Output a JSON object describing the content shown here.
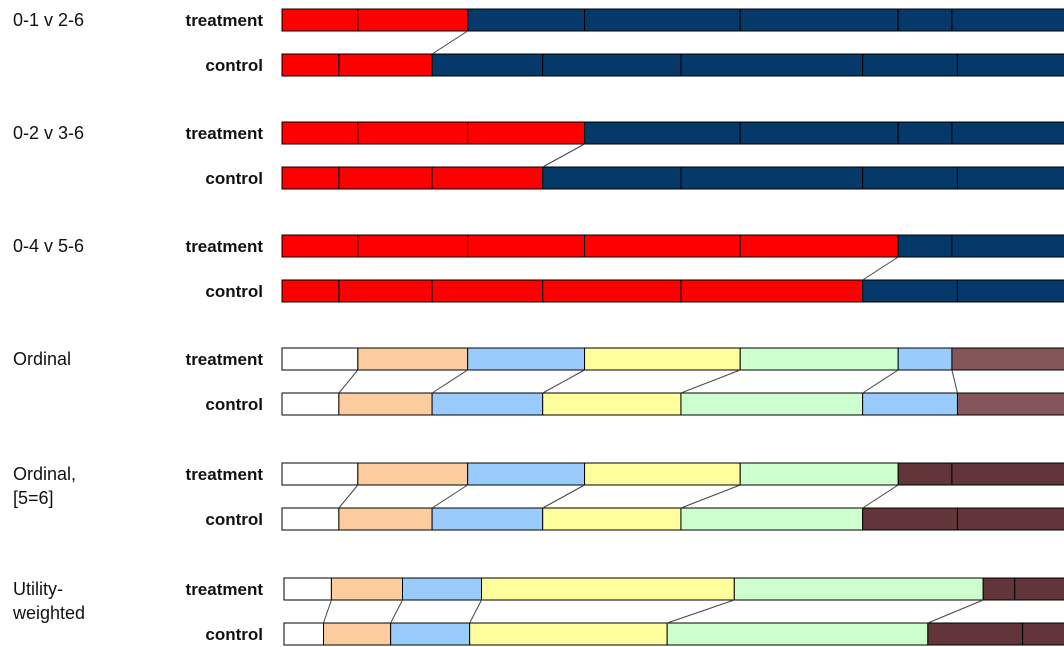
{
  "colors": {
    "red": "#fe0000",
    "navy": "#043969",
    "white": "#ffffff",
    "orange": "#fdcc9e",
    "blue": "#9acbfd",
    "yellow": "#fefe9c",
    "green": "#cdfecd",
    "mauve": "#845659",
    "darkred": "#62353b"
  },
  "arm_labels": {
    "treatment": "treatment",
    "control": "control"
  },
  "panels": [
    {
      "id": "0-1-v-2-6",
      "label_lines": [
        "0-1 v 2-6"
      ],
      "treatment": {
        "cuts": [
          0,
          0.096,
          0.235,
          0.383,
          0.58,
          0.78,
          0.848,
          1.0
        ],
        "colors": [
          "red",
          "red",
          "navy",
          "navy",
          "navy",
          "navy",
          "navy"
        ]
      },
      "control": {
        "cuts": [
          0,
          0.072,
          0.19,
          0.33,
          0.505,
          0.735,
          0.855,
          1.0
        ],
        "colors": [
          "red",
          "red",
          "navy",
          "navy",
          "navy",
          "navy",
          "navy"
        ]
      },
      "connectors": [
        2
      ]
    },
    {
      "id": "0-2-v-3-6",
      "label_lines": [
        "0-2 v 3-6"
      ],
      "treatment": {
        "cuts": [
          0,
          0.096,
          0.235,
          0.383,
          0.58,
          0.78,
          0.848,
          1.0
        ],
        "colors": [
          "red",
          "red",
          "red",
          "navy",
          "navy",
          "navy",
          "navy"
        ]
      },
      "control": {
        "cuts": [
          0,
          0.072,
          0.19,
          0.33,
          0.505,
          0.735,
          0.855,
          1.0
        ],
        "colors": [
          "red",
          "red",
          "red",
          "navy",
          "navy",
          "navy",
          "navy"
        ]
      },
      "connectors": [
        3
      ]
    },
    {
      "id": "0-4-v-5-6",
      "label_lines": [
        "0-4 v 5-6"
      ],
      "treatment": {
        "cuts": [
          0,
          0.096,
          0.235,
          0.383,
          0.58,
          0.78,
          0.848,
          1.0
        ],
        "colors": [
          "red",
          "red",
          "red",
          "red",
          "red",
          "navy",
          "navy"
        ]
      },
      "control": {
        "cuts": [
          0,
          0.072,
          0.19,
          0.33,
          0.505,
          0.735,
          0.855,
          1.0
        ],
        "colors": [
          "red",
          "red",
          "red",
          "red",
          "red",
          "navy",
          "navy"
        ]
      },
      "connectors": [
        5
      ]
    },
    {
      "id": "ordinal",
      "label_lines": [
        "Ordinal"
      ],
      "treatment": {
        "cuts": [
          0,
          0.096,
          0.235,
          0.383,
          0.58,
          0.78,
          0.848,
          1.0
        ],
        "colors": [
          "white",
          "orange",
          "blue",
          "yellow",
          "green",
          "blue",
          "mauve"
        ]
      },
      "control": {
        "cuts": [
          0,
          0.072,
          0.19,
          0.33,
          0.505,
          0.735,
          0.855,
          1.0
        ],
        "colors": [
          "white",
          "orange",
          "blue",
          "yellow",
          "green",
          "blue",
          "mauve"
        ]
      },
      "connectors": [
        1,
        2,
        3,
        4,
        5,
        6
      ]
    },
    {
      "id": "ordinal-5-6",
      "label_lines": [
        "Ordinal,",
        "[5=6]"
      ],
      "treatment": {
        "cuts": [
          0,
          0.096,
          0.235,
          0.383,
          0.58,
          0.78,
          0.848,
          1.0
        ],
        "colors": [
          "white",
          "orange",
          "blue",
          "yellow",
          "green",
          "darkred",
          "darkred"
        ]
      },
      "control": {
        "cuts": [
          0,
          0.072,
          0.19,
          0.33,
          0.505,
          0.735,
          0.855,
          1.0
        ],
        "colors": [
          "white",
          "orange",
          "blue",
          "yellow",
          "green",
          "darkred",
          "darkred"
        ]
      },
      "connectors": [
        1,
        2,
        3,
        4,
        5
      ]
    },
    {
      "id": "utility-weighted",
      "label_lines": [
        "Utility-",
        "weighted"
      ],
      "treatment": {
        "cuts": [
          0,
          0.06,
          0.15,
          0.25,
          0.57,
          0.885,
          0.925,
          1.0
        ],
        "colors": [
          "white",
          "orange",
          "blue",
          "yellow",
          "green",
          "darkred",
          "darkred"
        ]
      },
      "control": {
        "cuts": [
          0,
          0.05,
          0.135,
          0.235,
          0.485,
          0.815,
          0.935,
          1.0
        ],
        "colors": [
          "white",
          "orange",
          "blue",
          "yellow",
          "green",
          "darkred",
          "darkred"
        ]
      },
      "connectors": [
        1,
        2,
        3,
        4,
        5
      ]
    }
  ]
}
